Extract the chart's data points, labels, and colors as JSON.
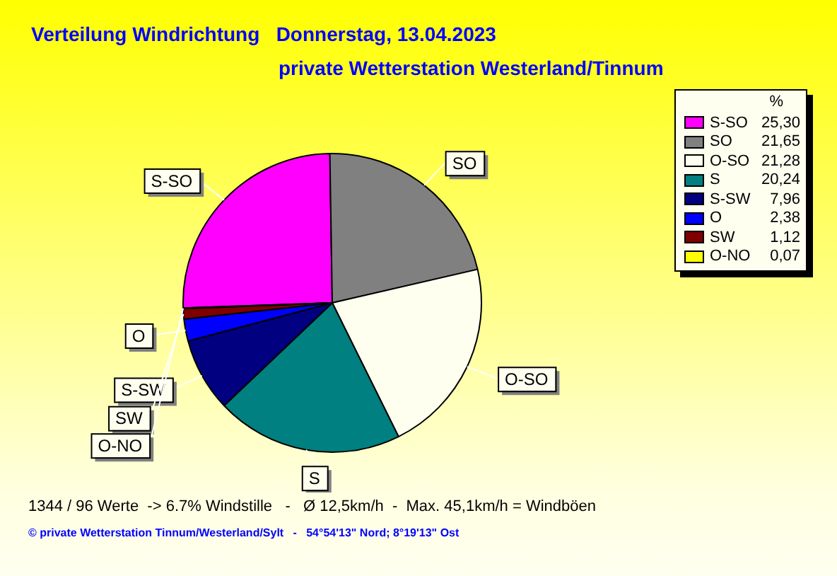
{
  "chart_data": {
    "type": "pie",
    "title": "Verteilung Windrichtung   Donnerstag, 13.04.2023",
    "subtitle": "private Wetterstation Westerland/Tinnum",
    "legend_title": "%",
    "categories": [
      "S-SO",
      "SO",
      "O-SO",
      "S",
      "S-SW",
      "O",
      "SW",
      "O-NO"
    ],
    "values": [
      25.3,
      21.65,
      21.28,
      20.24,
      7.96,
      2.38,
      1.12,
      0.07
    ],
    "value_labels": [
      "25,30",
      "21,65",
      "21,28",
      "20,24",
      "7,96",
      "2,38",
      "1,12",
      "0,07"
    ],
    "colors": [
      "#ff00ff",
      "#808080",
      "#fffff0",
      "#008080",
      "#000080",
      "#0000ff",
      "#800000",
      "#ffff00"
    ],
    "legend": "right",
    "annotations": [
      "1344 / 96 Werte  -> 6.7% Windstille   -   Ø 12,5km/h  -  Max. 45,1km/h = Windböen",
      "© private Wetterstation Tinnum/Westerland/Sylt   -   54°54'13\" Nord; 8°19'13\" Ost"
    ]
  }
}
